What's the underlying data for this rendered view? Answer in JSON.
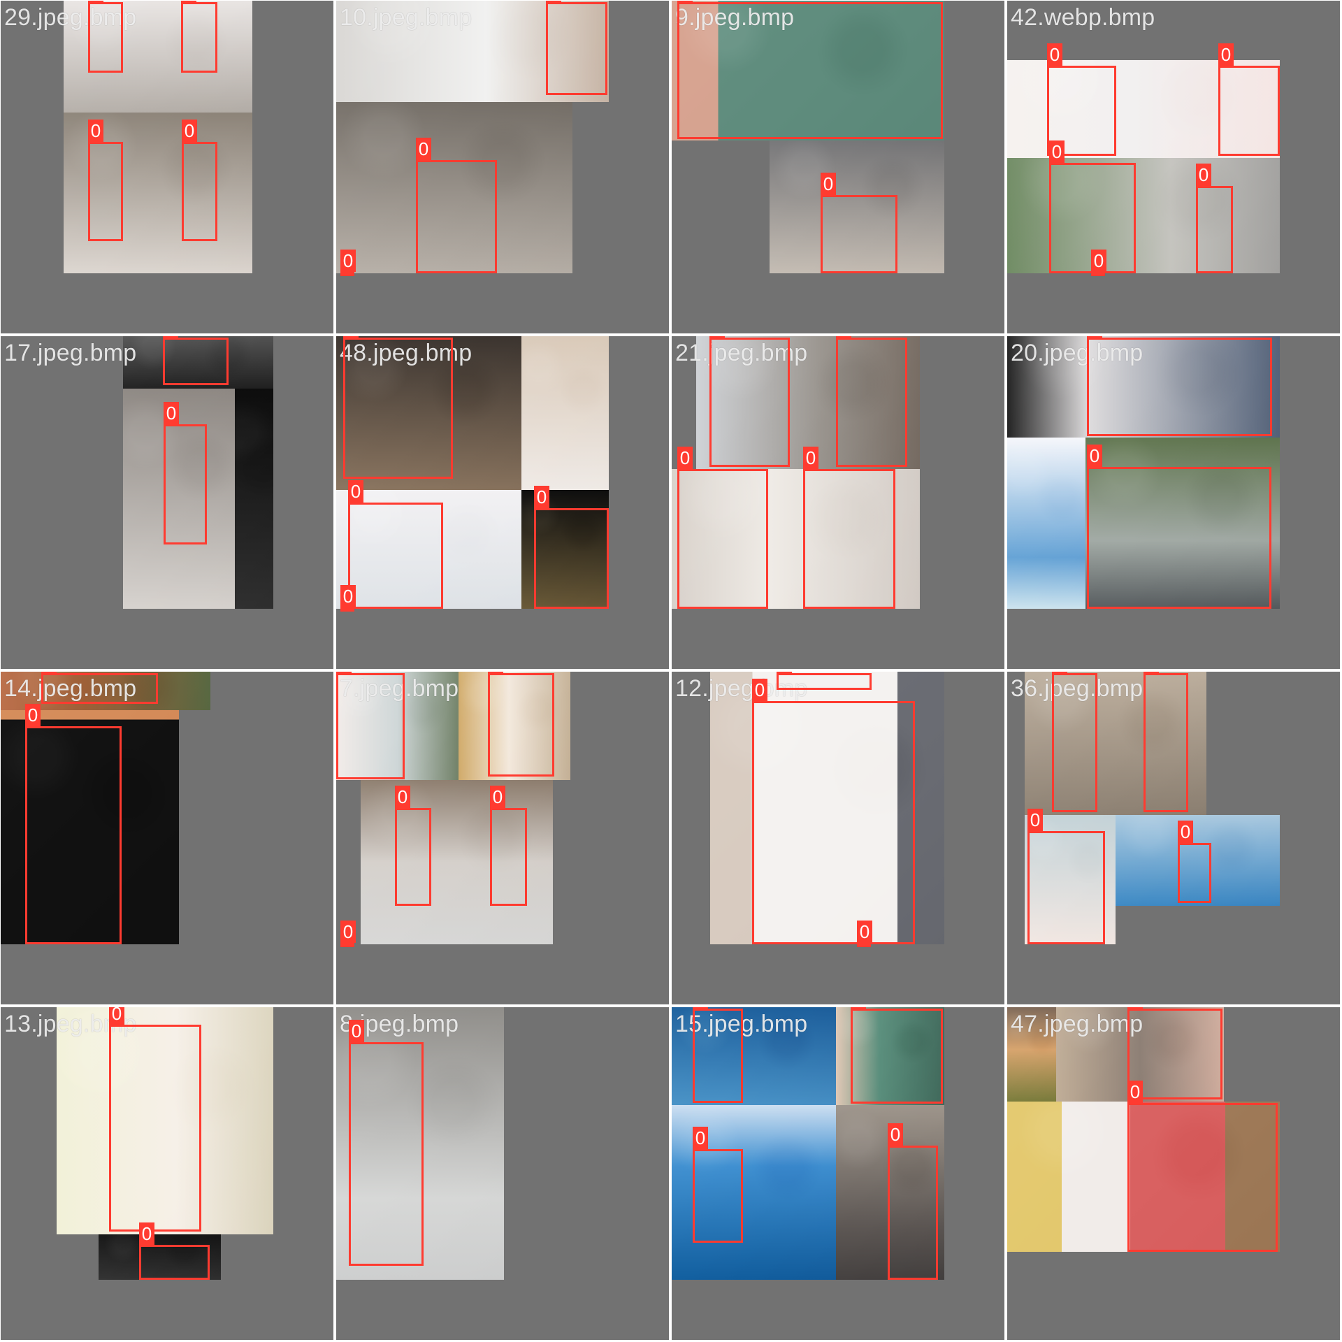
{
  "grid": {
    "tiles": [
      {
        "label": "29.jpeg.bmp",
        "boxes": [
          "0",
          "0",
          "0",
          "0"
        ]
      },
      {
        "label": "10.jpeg.bmp",
        "boxes": [
          "0",
          "0",
          "0"
        ]
      },
      {
        "label": "9.jpeg.bmp",
        "boxes": [
          "0",
          "0"
        ]
      },
      {
        "label": "42.webp.bmp",
        "boxes": [
          "0",
          "0",
          "0",
          "0",
          "0"
        ]
      },
      {
        "label": "17.jpeg.bmp",
        "boxes": [
          "0",
          "0"
        ]
      },
      {
        "label": "48.jpeg.bmp",
        "boxes": [
          "0",
          "0",
          "0",
          "0"
        ]
      },
      {
        "label": "21.jpeg.bmp",
        "boxes": [
          "0",
          "0",
          "0",
          "0"
        ]
      },
      {
        "label": "20.jpeg.bmp",
        "boxes": [
          "0",
          "0"
        ]
      },
      {
        "label": "14.jpeg.bmp",
        "boxes": [
          "0",
          "0"
        ]
      },
      {
        "label": "7.jpeg.bmp",
        "boxes": [
          "0",
          "0",
          "0",
          "0",
          "0"
        ]
      },
      {
        "label": "12.jpeg.bmp",
        "boxes": [
          "0",
          "0",
          "0"
        ]
      },
      {
        "label": "36.jpeg.bmp",
        "boxes": [
          "0",
          "0",
          "0",
          "0"
        ]
      },
      {
        "label": "13.jpeg.bmp",
        "boxes": [
          "0",
          "0"
        ]
      },
      {
        "label": "8.jpeg.bmp",
        "boxes": [
          "0"
        ]
      },
      {
        "label": "15.jpeg.bmp",
        "boxes": [
          "0",
          "0",
          "0",
          "0"
        ]
      },
      {
        "label": "47.jpeg.bmp",
        "boxes": [
          "0",
          "0"
        ]
      }
    ]
  },
  "colors": {
    "background_tile": "#727272",
    "separator": "#ffffff",
    "bbox": "#ff3b30",
    "label_text": "#f5f5f5"
  }
}
